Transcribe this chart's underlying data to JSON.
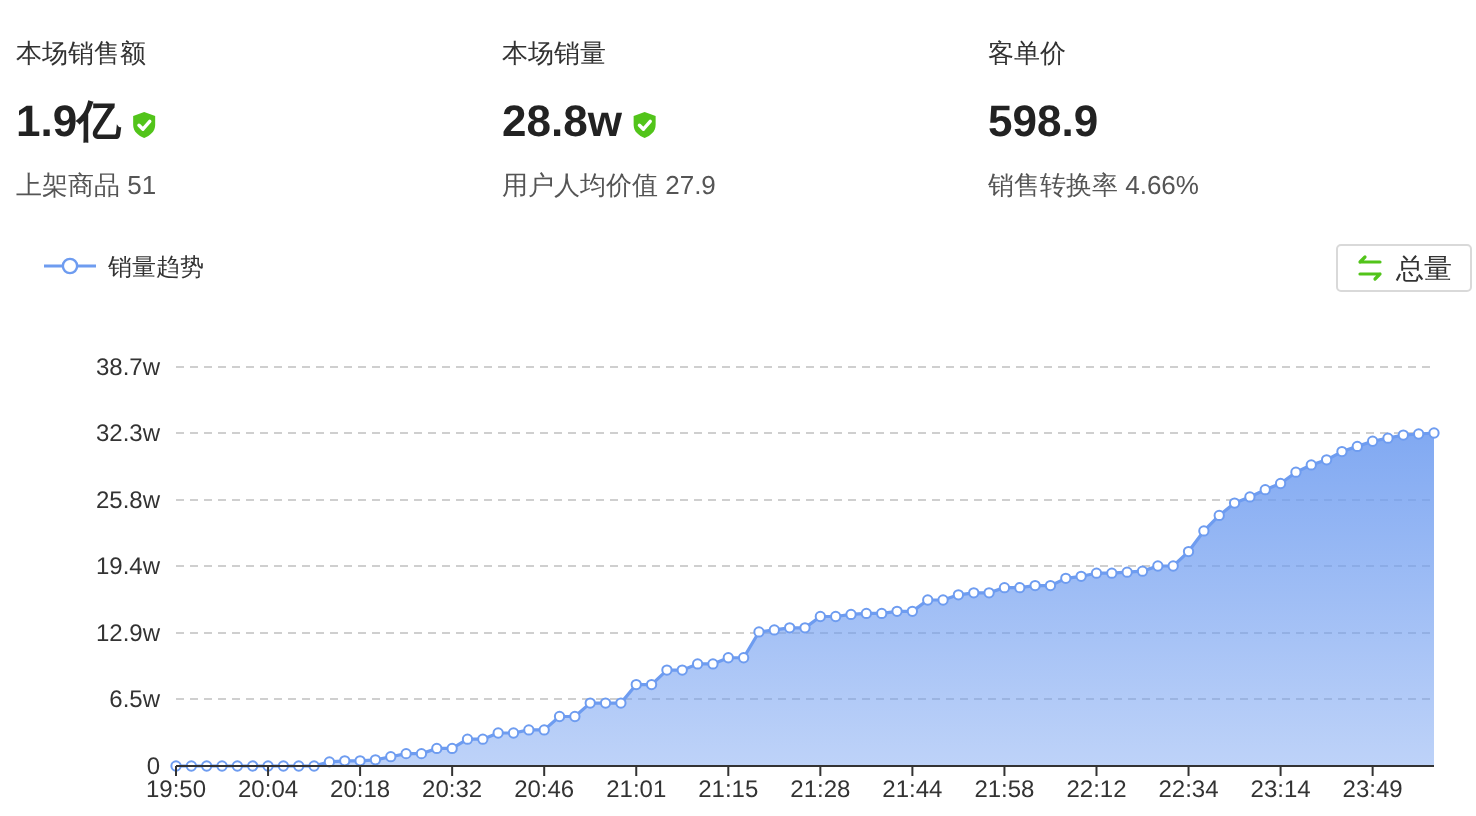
{
  "chart_data": [
    {
      "type": "other",
      "annotations": [
        "本场销售额",
        "1.9亿",
        "上架商品 51",
        "本场销量",
        "28.8w",
        "用户人均价值 27.9",
        "客单价",
        "598.9",
        "销售转换率 4.66%"
      ]
    },
    {
      "type": "area",
      "categories": [
        "19:50",
        null,
        null,
        null,
        null,
        null,
        "20:04",
        null,
        null,
        null,
        null,
        null,
        "20:18",
        null,
        null,
        null,
        null,
        null,
        "20:32",
        null,
        null,
        null,
        null,
        null,
        "20:46",
        null,
        null,
        null,
        null,
        null,
        "21:01",
        null,
        null,
        null,
        null,
        null,
        "21:15",
        null,
        null,
        null,
        null,
        null,
        "21:28",
        null,
        null,
        null,
        null,
        null,
        "21:44",
        null,
        null,
        null,
        null,
        null,
        "21:58",
        null,
        null,
        null,
        null,
        null,
        "22:12",
        null,
        null,
        null,
        null,
        null,
        "22:34",
        null,
        null,
        null,
        null,
        null,
        "23:14",
        null,
        null,
        null,
        null,
        null,
        "23:49",
        null,
        null,
        null,
        null
      ],
      "series": [
        {
          "name": "销量趋势",
          "color": "#6e9cf0",
          "values": [
            0,
            0,
            0,
            0,
            0,
            0,
            0,
            0,
            0,
            0,
            0.4,
            0.5,
            0.5,
            0.6,
            0.9,
            1.2,
            1.2,
            1.7,
            1.7,
            2.6,
            2.6,
            3.2,
            3.2,
            3.5,
            3.5,
            4.8,
            4.8,
            6.1,
            6.1,
            6.1,
            7.9,
            7.9,
            9.3,
            9.3,
            9.9,
            9.9,
            10.5,
            10.5,
            13.0,
            13.2,
            13.4,
            13.4,
            14.5,
            14.5,
            14.7,
            14.8,
            14.8,
            15.0,
            15.0,
            16.1,
            16.1,
            16.6,
            16.8,
            16.8,
            17.3,
            17.3,
            17.5,
            17.5,
            18.2,
            18.4,
            18.7,
            18.7,
            18.8,
            18.9,
            19.4,
            19.4,
            20.8,
            22.8,
            24.3,
            25.5,
            26.1,
            26.8,
            27.4,
            28.5,
            29.2,
            29.7,
            30.5,
            31.0,
            31.5,
            31.8,
            32.1,
            32.2,
            32.3
          ]
        }
      ],
      "ylim": [
        0,
        38.7
      ],
      "yticks": [
        0,
        {
          "value": 6.5,
          "label": "6.5w"
        },
        {
          "value": 12.9,
          "label": "12.9w"
        },
        {
          "value": 19.4,
          "label": "19.4w"
        },
        {
          "value": 25.8,
          "label": "25.8w"
        },
        {
          "value": 32.3,
          "label": "32.3w"
        },
        {
          "value": 38.7,
          "label": "38.7w"
        }
      ],
      "grid": "y",
      "legend": "top left",
      "marker": "circle",
      "annotations": [
        "总量"
      ]
    }
  ]
}
